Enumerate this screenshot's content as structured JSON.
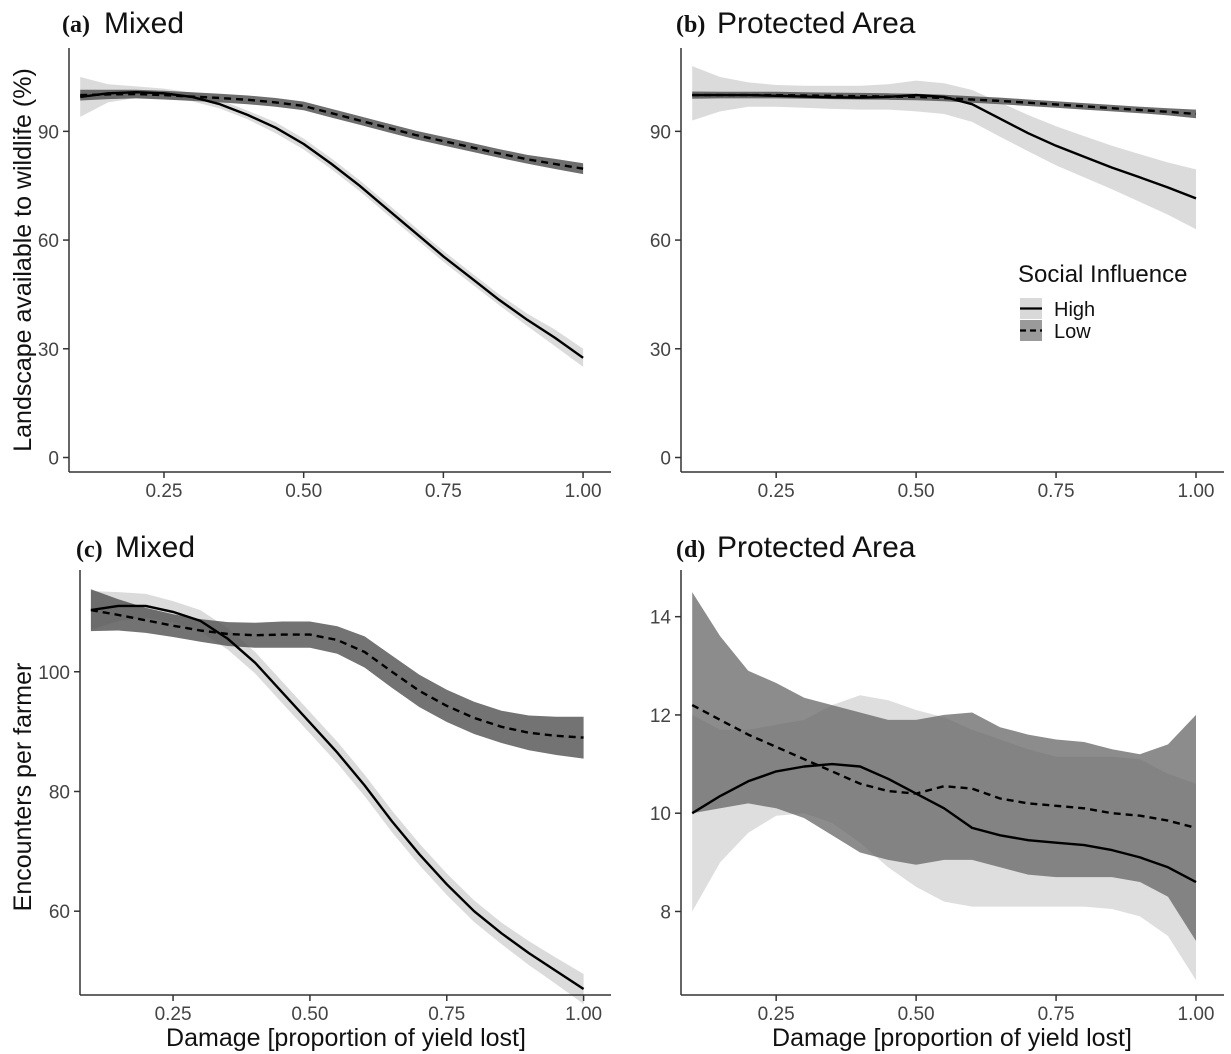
{
  "legend": {
    "title": "Social Influence",
    "entries": [
      {
        "label": "High",
        "style": "solid"
      },
      {
        "label": "Low",
        "style": "dashed"
      }
    ],
    "placement": "right, inside panel (b)"
  },
  "colors": {
    "high_band": "#d9d9d9",
    "low_band_top": "#6e6e6e",
    "low_band_bottom": "#666666",
    "line": "#000000",
    "axis": "#333333"
  },
  "chart_data": [
    {
      "type": "line",
      "panel_label": "(a)",
      "title": "Mixed",
      "xlabel": "",
      "ylabel": "Landscape available to wildlife (%)",
      "xlim": [
        0.08,
        1.05
      ],
      "ylim": [
        -4,
        113
      ],
      "xticks": [
        0.25,
        0.5,
        0.75,
        1.0
      ],
      "xtick_labels": [
        "0.25",
        "0.50",
        "0.75",
        "1.00"
      ],
      "yticks": [
        0,
        30,
        60,
        90
      ],
      "ytick_labels": [
        "0",
        "30",
        "60",
        "90"
      ],
      "grid": false,
      "x": [
        0.1,
        0.15,
        0.2,
        0.25,
        0.3,
        0.35,
        0.4,
        0.45,
        0.5,
        0.55,
        0.6,
        0.65,
        0.7,
        0.75,
        0.8,
        0.85,
        0.9,
        0.95,
        1.0
      ],
      "series": [
        {
          "name": "High",
          "line": "solid",
          "values": [
            99.5,
            100.5,
            100.8,
            100.5,
            99.5,
            97.5,
            94.5,
            91,
            86.5,
            81,
            75,
            68.5,
            62,
            55.5,
            49.5,
            43.5,
            38,
            33,
            27.5
          ],
          "ci_lower": [
            94,
            98,
            99.2,
            99.2,
            98.3,
            96.3,
            93.3,
            89.5,
            85,
            79.5,
            73.5,
            67,
            60.5,
            54,
            48,
            42,
            36.3,
            30.7,
            25
          ],
          "ci_upper": [
            105,
            103,
            102.4,
            101.8,
            100.7,
            98.7,
            95.7,
            92.5,
            88,
            82.5,
            76.5,
            70,
            63.5,
            57,
            51,
            45,
            39.7,
            35.3,
            30
          ]
        },
        {
          "name": "Low",
          "line": "dashed",
          "values": [
            100,
            100.2,
            100.3,
            100,
            99.6,
            99.2,
            98.7,
            98,
            97,
            95,
            93,
            91,
            89,
            87.3,
            85.6,
            83.9,
            82.3,
            81,
            79.7
          ],
          "ci_lower": [
            98.5,
            98.9,
            99.1,
            98.8,
            98.4,
            98,
            97.5,
            96.8,
            95.8,
            93.8,
            91.8,
            89.8,
            87.8,
            86.1,
            84.4,
            82.7,
            81.1,
            79.6,
            78.2
          ],
          "ci_upper": [
            101.5,
            101.5,
            101.5,
            101.2,
            100.8,
            100.4,
            99.9,
            99.2,
            98.2,
            96.2,
            94.2,
            92.2,
            90.2,
            88.5,
            86.8,
            85.1,
            83.5,
            82.4,
            81.2
          ]
        }
      ]
    },
    {
      "type": "line",
      "panel_label": "(b)",
      "title": "Protected Area",
      "xlabel": "",
      "ylabel": "",
      "xlim": [
        0.08,
        1.05
      ],
      "ylim": [
        -4,
        113
      ],
      "xticks": [
        0.25,
        0.5,
        0.75,
        1.0
      ],
      "xtick_labels": [
        "0.25",
        "0.50",
        "0.75",
        "1.00"
      ],
      "yticks": [
        0,
        30,
        60,
        90
      ],
      "ytick_labels": [
        "0",
        "30",
        "60",
        "90"
      ],
      "grid": false,
      "x": [
        0.1,
        0.15,
        0.2,
        0.25,
        0.3,
        0.35,
        0.4,
        0.45,
        0.5,
        0.55,
        0.6,
        0.65,
        0.7,
        0.75,
        0.8,
        0.85,
        0.9,
        0.95,
        1.0
      ],
      "series": [
        {
          "name": "High",
          "line": "solid",
          "values": [
            100,
            100,
            100,
            99.8,
            99.6,
            99.4,
            99.3,
            99.5,
            100,
            99.5,
            97.5,
            93.5,
            89.5,
            86,
            83,
            80,
            77.3,
            74.5,
            71.5
          ],
          "ci_lower": [
            93,
            95.5,
            96.8,
            96.8,
            96.5,
            96.2,
            96,
            96,
            95.5,
            94.8,
            92.6,
            88.5,
            84.5,
            80.6,
            77.3,
            74,
            70.5,
            67,
            63
          ],
          "ci_upper": [
            108,
            105,
            103.5,
            102.8,
            102.6,
            102.6,
            102.6,
            103,
            104,
            103.3,
            101.4,
            98,
            94.5,
            91.4,
            88.7,
            86,
            83.7,
            81.4,
            79.5
          ]
        },
        {
          "name": "Low",
          "line": "dashed",
          "values": [
            100,
            100,
            100,
            100,
            99.9,
            99.8,
            99.7,
            99.6,
            99.5,
            99.2,
            98.8,
            98.4,
            97.9,
            97.4,
            96.9,
            96.4,
            95.9,
            95.4,
            94.8
          ],
          "ci_lower": [
            99,
            99.1,
            99.1,
            99.1,
            99,
            98.9,
            98.8,
            98.7,
            98.6,
            98.3,
            97.9,
            97.5,
            97,
            96.5,
            96,
            95.5,
            95,
            94.4,
            93.6
          ],
          "ci_upper": [
            101,
            100.9,
            100.9,
            100.9,
            100.8,
            100.7,
            100.6,
            100.5,
            100.4,
            100.1,
            99.7,
            99.3,
            98.8,
            98.3,
            97.8,
            97.3,
            96.8,
            96.4,
            96
          ]
        }
      ]
    },
    {
      "type": "line",
      "panel_label": "(c)",
      "title": "Mixed",
      "xlabel": "Damage [proportion of yield lost]",
      "ylabel": "Encounters per farmer",
      "xlim": [
        0.08,
        1.05
      ],
      "ylim": [
        46,
        117
      ],
      "xticks": [
        0.25,
        0.5,
        0.75,
        1.0
      ],
      "xtick_labels": [
        "0.25",
        "0.50",
        "0.75",
        "1.00"
      ],
      "yticks": [
        60,
        80,
        100
      ],
      "ytick_labels": [
        "60",
        "80",
        "100"
      ],
      "grid": false,
      "x": [
        0.1,
        0.15,
        0.2,
        0.25,
        0.3,
        0.35,
        0.4,
        0.45,
        0.5,
        0.55,
        0.6,
        0.65,
        0.7,
        0.75,
        0.8,
        0.85,
        0.9,
        0.95,
        1.0
      ],
      "series": [
        {
          "name": "High",
          "line": "solid",
          "values": [
            110.3,
            111,
            111,
            110,
            108.5,
            105.5,
            101.5,
            96.5,
            91.5,
            86.5,
            81,
            75,
            69.5,
            64.5,
            60,
            56.3,
            53,
            50,
            47
          ],
          "ci_lower": [
            107,
            108.5,
            109,
            108.2,
            106.7,
            103.7,
            99.7,
            94.7,
            89.7,
            84.7,
            79.2,
            73.2,
            67.7,
            62.7,
            58.2,
            54.5,
            51,
            47.8,
            44.5
          ],
          "ci_upper": [
            113.5,
            113.3,
            113,
            111.8,
            110.3,
            107.3,
            103.3,
            98.3,
            93.3,
            88.3,
            82.8,
            76.8,
            71.3,
            66.3,
            61.8,
            58.1,
            55,
            52.2,
            49.5
          ]
        },
        {
          "name": "Low",
          "line": "dashed",
          "values": [
            110.3,
            109.5,
            108.6,
            107.7,
            106.9,
            106.3,
            106.1,
            106.2,
            106.2,
            105.3,
            103.3,
            100,
            96.8,
            94.3,
            92.3,
            90.8,
            89.8,
            89.3,
            89
          ],
          "ci_lower": [
            106.8,
            106.9,
            106.5,
            105.8,
            105,
            104.3,
            104,
            104,
            104,
            103,
            100.7,
            97.3,
            94.1,
            91.6,
            89.6,
            88.1,
            86.9,
            86.1,
            85.5
          ],
          "ci_upper": [
            113.8,
            112.1,
            110.7,
            109.6,
            108.8,
            108.3,
            108.2,
            108.4,
            108.4,
            107.6,
            105.9,
            102.7,
            99.5,
            97,
            95,
            93.5,
            92.7,
            92.5,
            92.5
          ]
        }
      ]
    },
    {
      "type": "line",
      "panel_label": "(d)",
      "title": "Protected Area",
      "xlabel": "Damage [proportion of yield lost]",
      "ylabel": "",
      "xlim": [
        0.08,
        1.05
      ],
      "ylim": [
        6.3,
        14.95
      ],
      "xticks": [
        0.25,
        0.5,
        0.75,
        1.0
      ],
      "xtick_labels": [
        "0.25",
        "0.50",
        "0.75",
        "1.00"
      ],
      "yticks": [
        8,
        10,
        12,
        14
      ],
      "ytick_labels": [
        "8",
        "10",
        "12",
        "14"
      ],
      "grid": false,
      "x": [
        0.1,
        0.15,
        0.2,
        0.25,
        0.3,
        0.35,
        0.4,
        0.45,
        0.5,
        0.55,
        0.6,
        0.65,
        0.7,
        0.75,
        0.8,
        0.85,
        0.9,
        0.95,
        1.0
      ],
      "series": [
        {
          "name": "High",
          "line": "solid",
          "values": [
            10,
            10.35,
            10.65,
            10.85,
            10.95,
            11,
            10.95,
            10.7,
            10.4,
            10.1,
            9.7,
            9.55,
            9.45,
            9.4,
            9.35,
            9.25,
            9.1,
            8.9,
            8.6
          ],
          "ci_lower": [
            8,
            9,
            9.6,
            9.95,
            10,
            9.8,
            9.4,
            8.9,
            8.5,
            8.2,
            8.1,
            8.1,
            8.1,
            8.1,
            8.1,
            8.05,
            7.9,
            7.5,
            6.6
          ],
          "ci_upper": [
            12,
            11.7,
            11.7,
            11.8,
            11.9,
            12.2,
            12.4,
            12.3,
            12.1,
            11.95,
            11.7,
            11.5,
            11.3,
            11.15,
            11.15,
            11.15,
            11.1,
            10.8,
            10.6
          ]
        },
        {
          "name": "Low",
          "line": "dashed",
          "values": [
            12.2,
            11.9,
            11.6,
            11.35,
            11.1,
            10.85,
            10.6,
            10.45,
            10.4,
            10.55,
            10.5,
            10.3,
            10.2,
            10.15,
            10.1,
            10,
            9.95,
            9.85,
            9.7
          ],
          "ci_lower": [
            10,
            10.1,
            10.2,
            10.1,
            9.9,
            9.55,
            9.2,
            9.05,
            8.95,
            9.05,
            9.05,
            8.9,
            8.75,
            8.7,
            8.7,
            8.7,
            8.6,
            8.3,
            7.4
          ],
          "ci_upper": [
            14.5,
            13.6,
            12.9,
            12.65,
            12.35,
            12.2,
            12.05,
            11.9,
            11.9,
            12,
            12.05,
            11.75,
            11.6,
            11.5,
            11.45,
            11.3,
            11.2,
            11.4,
            12
          ]
        }
      ]
    }
  ]
}
